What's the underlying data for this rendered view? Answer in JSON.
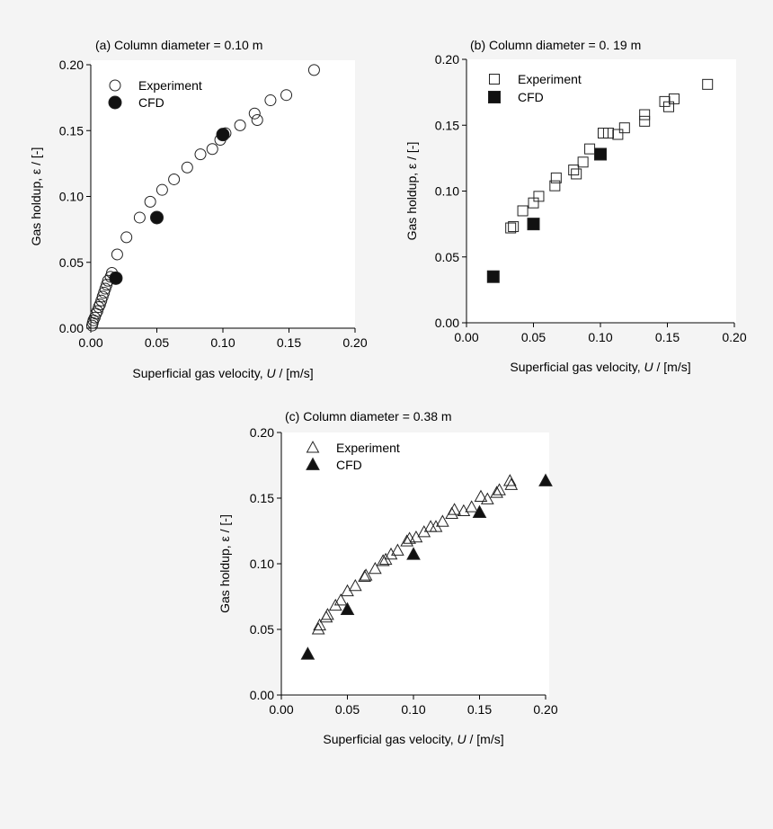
{
  "chart_data": [
    {
      "type": "scatter",
      "title": "(a) Column diameter = 0.10 m",
      "xlabel_main": "Superficial gas velocity, ",
      "xlabel_symbol": "U",
      "xlabel_unit": " / [m/s]",
      "ylabel": "Gas holdup, ε / [-]",
      "xlim": [
        0,
        0.2
      ],
      "ylim": [
        0,
        0.2
      ],
      "xticks": [
        0,
        0.05,
        0.1,
        0.15,
        0.2
      ],
      "yticks": [
        0,
        0.05,
        0.1,
        0.15,
        0.2
      ],
      "xtick_labels": [
        "0.00",
        "0.05",
        "0.10",
        "0.15",
        "0.20"
      ],
      "ytick_labels": [
        "0.00",
        "0.05",
        "0.10",
        "0.15",
        "0.20"
      ],
      "marker": "circle",
      "legend_position": "top-left",
      "series": [
        {
          "name": "Experiment",
          "filled": false,
          "points": [
            [
              0.001,
              0.002
            ],
            [
              0.0015,
              0.004
            ],
            [
              0.002,
              0.006
            ],
            [
              0.003,
              0.008
            ],
            [
              0.004,
              0.011
            ],
            [
              0.005,
              0.013
            ],
            [
              0.006,
              0.016
            ],
            [
              0.007,
              0.018
            ],
            [
              0.008,
              0.021
            ],
            [
              0.009,
              0.024
            ],
            [
              0.01,
              0.027
            ],
            [
              0.011,
              0.03
            ],
            [
              0.012,
              0.033
            ],
            [
              0.013,
              0.036
            ],
            [
              0.015,
              0.039
            ],
            [
              0.016,
              0.042
            ],
            [
              0.02,
              0.056
            ],
            [
              0.027,
              0.069
            ],
            [
              0.037,
              0.084
            ],
            [
              0.045,
              0.096
            ],
            [
              0.054,
              0.105
            ],
            [
              0.063,
              0.113
            ],
            [
              0.073,
              0.122
            ],
            [
              0.083,
              0.132
            ],
            [
              0.092,
              0.136
            ],
            [
              0.098,
              0.143
            ],
            [
              0.102,
              0.148
            ],
            [
              0.113,
              0.154
            ],
            [
              0.124,
              0.163
            ],
            [
              0.126,
              0.158
            ],
            [
              0.136,
              0.173
            ],
            [
              0.148,
              0.177
            ],
            [
              0.169,
              0.196
            ]
          ]
        },
        {
          "name": "CFD",
          "filled": true,
          "points": [
            [
              0.019,
              0.038
            ],
            [
              0.05,
              0.084
            ],
            [
              0.1,
              0.147
            ]
          ]
        }
      ]
    },
    {
      "type": "scatter",
      "title": "(b) Column diameter = 0. 19 m",
      "xlabel_main": "Superficial gas velocity, ",
      "xlabel_symbol": "U",
      "xlabel_unit": " / [m/s]",
      "ylabel": "Gas holdup, ε / [-]",
      "xlim": [
        0,
        0.2
      ],
      "ylim": [
        0,
        0.2
      ],
      "xticks": [
        0,
        0.05,
        0.1,
        0.15,
        0.2
      ],
      "yticks": [
        0,
        0.05,
        0.1,
        0.15,
        0.2
      ],
      "xtick_labels": [
        "0.00",
        "0.05",
        "0.10",
        "0.15",
        "0.20"
      ],
      "ytick_labels": [
        "0.00",
        "0.05",
        "0.10",
        "0.15",
        "0.20"
      ],
      "marker": "square",
      "legend_position": "top-left",
      "series": [
        {
          "name": "Experiment",
          "filled": false,
          "points": [
            [
              0.033,
              0.072
            ],
            [
              0.035,
              0.073
            ],
            [
              0.042,
              0.085
            ],
            [
              0.05,
              0.091
            ],
            [
              0.054,
              0.096
            ],
            [
              0.066,
              0.104
            ],
            [
              0.067,
              0.11
            ],
            [
              0.08,
              0.116
            ],
            [
              0.082,
              0.113
            ],
            [
              0.087,
              0.122
            ],
            [
              0.092,
              0.132
            ],
            [
              0.102,
              0.144
            ],
            [
              0.106,
              0.144
            ],
            [
              0.113,
              0.143
            ],
            [
              0.118,
              0.148
            ],
            [
              0.133,
              0.153
            ],
            [
              0.133,
              0.158
            ],
            [
              0.148,
              0.168
            ],
            [
              0.151,
              0.164
            ],
            [
              0.155,
              0.17
            ],
            [
              0.18,
              0.181
            ]
          ]
        },
        {
          "name": "CFD",
          "filled": true,
          "points": [
            [
              0.02,
              0.035
            ],
            [
              0.05,
              0.075
            ],
            [
              0.1,
              0.128
            ]
          ]
        }
      ]
    },
    {
      "type": "scatter",
      "title": "(c) Column diameter = 0.38 m",
      "xlabel_main": "Superficial gas velocity, ",
      "xlabel_symbol": "U",
      "xlabel_unit": " / [m/s]",
      "ylabel": "Gas holdup, ε / [-]",
      "xlim": [
        0,
        0.2
      ],
      "ylim": [
        0,
        0.2
      ],
      "xticks": [
        0,
        0.05,
        0.1,
        0.15,
        0.2
      ],
      "yticks": [
        0,
        0.05,
        0.1,
        0.15,
        0.2
      ],
      "xtick_labels": [
        "0.00",
        "0.05",
        "0.10",
        "0.15",
        "0.20"
      ],
      "ytick_labels": [
        "0.00",
        "0.05",
        "0.10",
        "0.15",
        "0.20"
      ],
      "marker": "triangle",
      "legend_position": "top-left",
      "series": [
        {
          "name": "Experiment",
          "filled": false,
          "points": [
            [
              0.028,
              0.05
            ],
            [
              0.029,
              0.053
            ],
            [
              0.034,
              0.059
            ],
            [
              0.035,
              0.061
            ],
            [
              0.041,
              0.068
            ],
            [
              0.045,
              0.072
            ],
            [
              0.05,
              0.079
            ],
            [
              0.056,
              0.083
            ],
            [
              0.063,
              0.09
            ],
            [
              0.064,
              0.091
            ],
            [
              0.071,
              0.096
            ],
            [
              0.077,
              0.102
            ],
            [
              0.079,
              0.103
            ],
            [
              0.083,
              0.107
            ],
            [
              0.088,
              0.11
            ],
            [
              0.095,
              0.117
            ],
            [
              0.097,
              0.119
            ],
            [
              0.102,
              0.12
            ],
            [
              0.108,
              0.124
            ],
            [
              0.113,
              0.128
            ],
            [
              0.117,
              0.128
            ],
            [
              0.122,
              0.132
            ],
            [
              0.129,
              0.138
            ],
            [
              0.131,
              0.141
            ],
            [
              0.138,
              0.14
            ],
            [
              0.144,
              0.143
            ],
            [
              0.151,
              0.151
            ],
            [
              0.156,
              0.149
            ],
            [
              0.163,
              0.154
            ],
            [
              0.165,
              0.156
            ],
            [
              0.173,
              0.163
            ],
            [
              0.174,
              0.16
            ]
          ]
        },
        {
          "name": "CFD",
          "filled": true,
          "points": [
            [
              0.02,
              0.031
            ],
            [
              0.05,
              0.065
            ],
            [
              0.1,
              0.107
            ],
            [
              0.15,
              0.139
            ],
            [
              0.2,
              0.163
            ]
          ]
        }
      ]
    }
  ]
}
